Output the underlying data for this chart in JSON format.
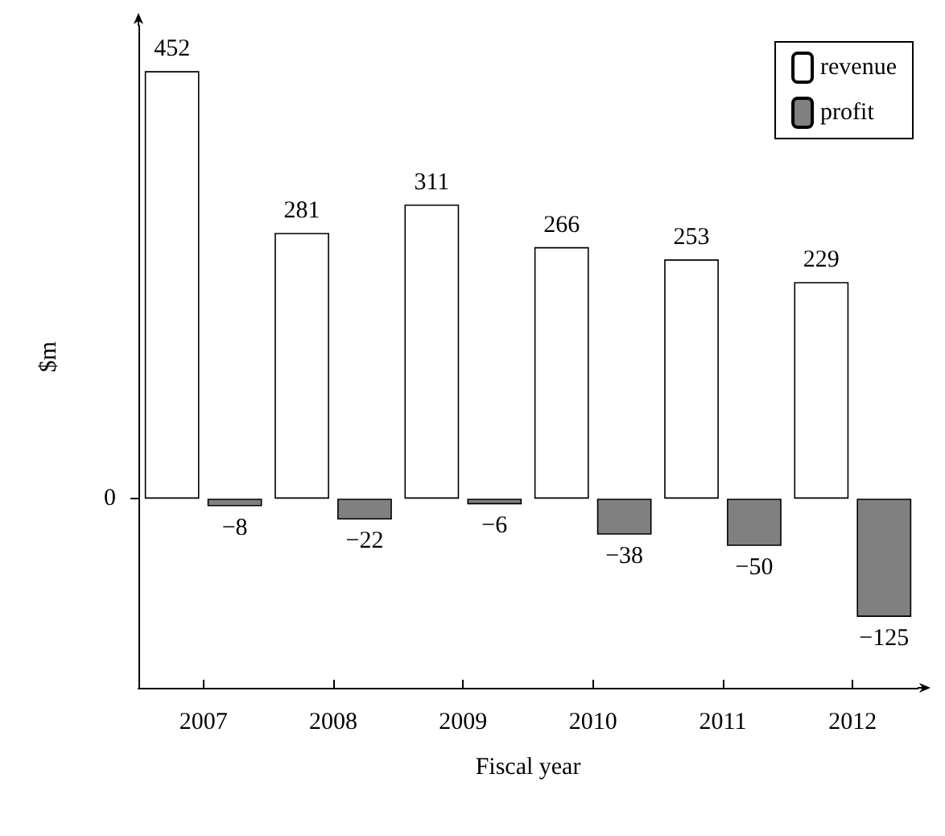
{
  "chart_data": {
    "type": "bar",
    "xlabel": "Fiscal year",
    "ylabel": "$m",
    "categories": [
      "2007",
      "2008",
      "2009",
      "2010",
      "2011",
      "2012"
    ],
    "series": [
      {
        "name": "revenue",
        "color": "#ffffff",
        "values": [
          452,
          281,
          311,
          266,
          253,
          229
        ]
      },
      {
        "name": "profit",
        "color": "#808080",
        "values": [
          -8,
          -22,
          -6,
          -38,
          -50,
          -125
        ]
      }
    ],
    "ylim": [
      -200,
      500
    ],
    "ref_lines": [
      {
        "axis": "y",
        "value": 0,
        "label": "0"
      }
    ],
    "grid": false,
    "legend": "top right",
    "data_labels": true
  }
}
